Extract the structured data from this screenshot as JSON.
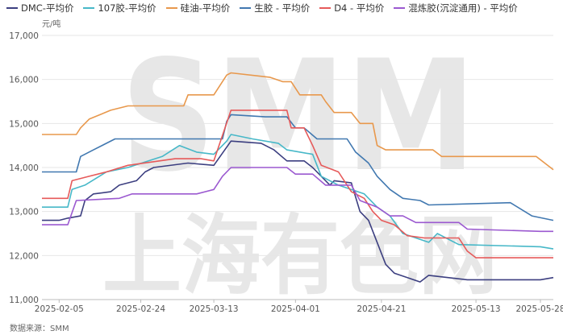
{
  "source": "数据来源：SMM",
  "watermark": {
    "top": "SMM",
    "bottom": "上海有色网"
  },
  "chart_data": {
    "type": "line",
    "ylabel": "元/吨",
    "ylim": [
      11000,
      17000
    ],
    "yticks": [
      11000,
      12000,
      13000,
      14000,
      15000,
      16000,
      17000
    ],
    "ytick_labels": [
      "11,000",
      "12,000",
      "13,000",
      "14,000",
      "15,000",
      "16,000",
      "17,000"
    ],
    "x_start": "2025-02-01",
    "x_end": "2025-05-31",
    "xticks": [
      {
        "date": "2025-02-05",
        "label": "2025-02-05"
      },
      {
        "date": "2025-02-24",
        "label": "2025-02-24"
      },
      {
        "date": "2025-03-13",
        "label": "2025-03-13"
      },
      {
        "date": "2025-04-01",
        "label": "2025-04-01"
      },
      {
        "date": "2025-04-21",
        "label": "2025-04-21"
      },
      {
        "date": "2025-05-13",
        "label": "2025-05-13"
      },
      {
        "date": "2025-05-28",
        "label": "2025-05-28"
      }
    ],
    "grid": true,
    "legend": "top",
    "series": [
      {
        "name": "DMC-平均价",
        "color": "#3c3f80",
        "points": [
          [
            "2025-02-01",
            12800
          ],
          [
            "2025-02-05",
            12800
          ],
          [
            "2025-02-07",
            12850
          ],
          [
            "2025-02-10",
            12900
          ],
          [
            "2025-02-11",
            13250
          ],
          [
            "2025-02-13",
            13400
          ],
          [
            "2025-02-17",
            13450
          ],
          [
            "2025-02-19",
            13600
          ],
          [
            "2025-02-23",
            13700
          ],
          [
            "2025-02-25",
            13900
          ],
          [
            "2025-02-27",
            14000
          ],
          [
            "2025-03-07",
            14100
          ],
          [
            "2025-03-13",
            14050
          ],
          [
            "2025-03-17",
            14600
          ],
          [
            "2025-03-24",
            14550
          ],
          [
            "2025-03-27",
            14400
          ],
          [
            "2025-03-30",
            14150
          ],
          [
            "2025-04-03",
            14150
          ],
          [
            "2025-04-05",
            14000
          ],
          [
            "2025-04-09",
            13600
          ],
          [
            "2025-04-10",
            13700
          ],
          [
            "2025-04-14",
            13650
          ],
          [
            "2025-04-16",
            13000
          ],
          [
            "2025-04-18",
            12800
          ],
          [
            "2025-04-22",
            11800
          ],
          [
            "2025-04-24",
            11600
          ],
          [
            "2025-04-30",
            11400
          ],
          [
            "2025-05-02",
            11550
          ],
          [
            "2025-05-11",
            11450
          ],
          [
            "2025-05-28",
            11450
          ],
          [
            "2025-05-31",
            11500
          ]
        ]
      },
      {
        "name": "107胶-平均价",
        "color": "#47b8c8",
        "points": [
          [
            "2025-02-01",
            13100
          ],
          [
            "2025-02-07",
            13100
          ],
          [
            "2025-02-08",
            13500
          ],
          [
            "2025-02-11",
            13600
          ],
          [
            "2025-02-16",
            13900
          ],
          [
            "2025-02-21",
            14000
          ],
          [
            "2025-03-01",
            14250
          ],
          [
            "2025-03-05",
            14500
          ],
          [
            "2025-03-09",
            14350
          ],
          [
            "2025-03-13",
            14300
          ],
          [
            "2025-03-16",
            14600
          ],
          [
            "2025-03-17",
            14750
          ],
          [
            "2025-03-22",
            14650
          ],
          [
            "2025-03-28",
            14550
          ],
          [
            "2025-03-30",
            14400
          ],
          [
            "2025-04-05",
            14300
          ],
          [
            "2025-04-07",
            13800
          ],
          [
            "2025-04-11",
            13600
          ],
          [
            "2025-04-17",
            13400
          ],
          [
            "2025-04-20",
            13100
          ],
          [
            "2025-04-23",
            12900
          ],
          [
            "2025-04-26",
            12500
          ],
          [
            "2025-05-02",
            12300
          ],
          [
            "2025-05-04",
            12500
          ],
          [
            "2025-05-09",
            12250
          ],
          [
            "2025-05-28",
            12200
          ],
          [
            "2025-05-31",
            12150
          ]
        ]
      },
      {
        "name": "硅油-平均价",
        "color": "#e8984c",
        "points": [
          [
            "2025-02-01",
            14750
          ],
          [
            "2025-02-09",
            14750
          ],
          [
            "2025-02-10",
            14900
          ],
          [
            "2025-02-12",
            15100
          ],
          [
            "2025-02-17",
            15300
          ],
          [
            "2025-02-21",
            15400
          ],
          [
            "2025-03-06",
            15400
          ],
          [
            "2025-03-07",
            15650
          ],
          [
            "2025-03-13",
            15650
          ],
          [
            "2025-03-16",
            16100
          ],
          [
            "2025-03-17",
            16150
          ],
          [
            "2025-03-26",
            16050
          ],
          [
            "2025-03-29",
            15950
          ],
          [
            "2025-03-31",
            15950
          ],
          [
            "2025-04-02",
            15650
          ],
          [
            "2025-04-07",
            15650
          ],
          [
            "2025-04-08",
            15500
          ],
          [
            "2025-04-10",
            15250
          ],
          [
            "2025-04-14",
            15250
          ],
          [
            "2025-04-16",
            15000
          ],
          [
            "2025-04-19",
            15000
          ],
          [
            "2025-04-20",
            14500
          ],
          [
            "2025-04-22",
            14400
          ],
          [
            "2025-05-03",
            14400
          ],
          [
            "2025-05-05",
            14250
          ],
          [
            "2025-05-27",
            14250
          ],
          [
            "2025-05-31",
            13950
          ]
        ]
      },
      {
        "name": "生胶 - 平均价",
        "color": "#4178b0",
        "points": [
          [
            "2025-02-01",
            13900
          ],
          [
            "2025-02-09",
            13900
          ],
          [
            "2025-02-10",
            14250
          ],
          [
            "2025-02-13",
            14400
          ],
          [
            "2025-02-18",
            14650
          ],
          [
            "2025-03-15",
            14650
          ],
          [
            "2025-03-16",
            15050
          ],
          [
            "2025-03-17",
            15200
          ],
          [
            "2025-03-25",
            15150
          ],
          [
            "2025-03-30",
            15150
          ],
          [
            "2025-04-01",
            14900
          ],
          [
            "2025-04-03",
            14900
          ],
          [
            "2025-04-06",
            14650
          ],
          [
            "2025-04-13",
            14650
          ],
          [
            "2025-04-15",
            14350
          ],
          [
            "2025-04-18",
            14100
          ],
          [
            "2025-04-20",
            13800
          ],
          [
            "2025-04-23",
            13500
          ],
          [
            "2025-04-26",
            13300
          ],
          [
            "2025-04-30",
            13250
          ],
          [
            "2025-05-02",
            13150
          ],
          [
            "2025-05-21",
            13200
          ],
          [
            "2025-05-26",
            12900
          ],
          [
            "2025-05-31",
            12800
          ]
        ]
      },
      {
        "name": "D4 - 平均价",
        "color": "#e65a5a",
        "points": [
          [
            "2025-02-01",
            13300
          ],
          [
            "2025-02-07",
            13300
          ],
          [
            "2025-02-08",
            13700
          ],
          [
            "2025-02-12",
            13800
          ],
          [
            "2025-02-16",
            13900
          ],
          [
            "2025-02-21",
            14050
          ],
          [
            "2025-03-04",
            14200
          ],
          [
            "2025-03-10",
            14200
          ],
          [
            "2025-03-13",
            14150
          ],
          [
            "2025-03-17",
            15300
          ],
          [
            "2025-03-26",
            15300
          ],
          [
            "2025-03-30",
            15300
          ],
          [
            "2025-03-31",
            14900
          ],
          [
            "2025-04-03",
            14900
          ],
          [
            "2025-04-05",
            14500
          ],
          [
            "2025-04-07",
            14050
          ],
          [
            "2025-04-11",
            13900
          ],
          [
            "2025-04-14",
            13450
          ],
          [
            "2025-04-17",
            13300
          ],
          [
            "2025-04-19",
            13000
          ],
          [
            "2025-04-21",
            12800
          ],
          [
            "2025-04-24",
            12700
          ],
          [
            "2025-04-27",
            12450
          ],
          [
            "2025-05-01",
            12400
          ],
          [
            "2025-05-09",
            12400
          ],
          [
            "2025-05-11",
            12100
          ],
          [
            "2025-05-13",
            11950
          ],
          [
            "2025-05-31",
            11950
          ]
        ]
      },
      {
        "name": "混炼胶(沉淀通用) - 平均价",
        "color": "#9b59d0",
        "points": [
          [
            "2025-02-01",
            12700
          ],
          [
            "2025-02-07",
            12700
          ],
          [
            "2025-02-09",
            13250
          ],
          [
            "2025-02-19",
            13300
          ],
          [
            "2025-02-22",
            13400
          ],
          [
            "2025-03-09",
            13400
          ],
          [
            "2025-03-13",
            13500
          ],
          [
            "2025-03-15",
            13800
          ],
          [
            "2025-03-17",
            14000
          ],
          [
            "2025-03-30",
            14000
          ],
          [
            "2025-04-01",
            13850
          ],
          [
            "2025-04-05",
            13850
          ],
          [
            "2025-04-08",
            13600
          ],
          [
            "2025-04-14",
            13600
          ],
          [
            "2025-04-16",
            13250
          ],
          [
            "2025-04-20",
            13100
          ],
          [
            "2025-04-23",
            12900
          ],
          [
            "2025-04-26",
            12900
          ],
          [
            "2025-04-29",
            12750
          ],
          [
            "2025-05-09",
            12750
          ],
          [
            "2025-05-11",
            12600
          ],
          [
            "2025-05-28",
            12550
          ],
          [
            "2025-05-31",
            12550
          ]
        ]
      }
    ]
  }
}
